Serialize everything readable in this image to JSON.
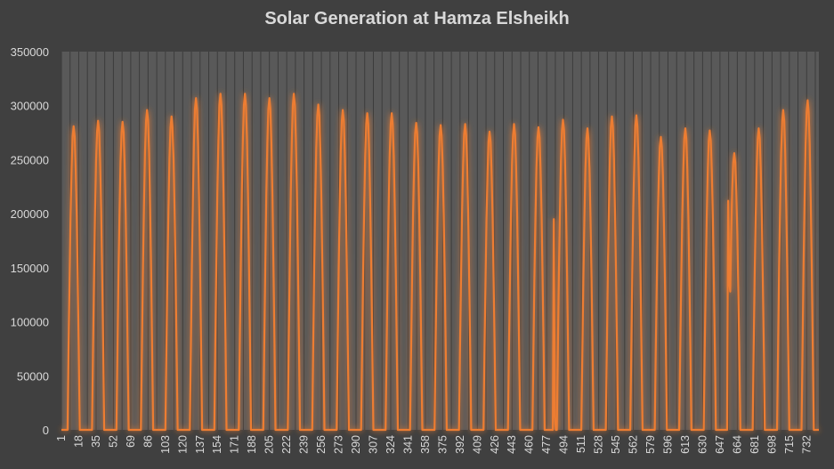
{
  "chart_data": {
    "type": "line",
    "title": "Solar Generation at Hamza Elsheikh",
    "xlabel": "",
    "ylabel": "",
    "xlim": [
      1,
      744
    ],
    "ylim": [
      0,
      350000
    ],
    "y_ticks": [
      0,
      50000,
      100000,
      150000,
      200000,
      250000,
      300000,
      350000
    ],
    "x_tick_labels": [
      1,
      18,
      35,
      52,
      69,
      86,
      103,
      120,
      137,
      154,
      171,
      188,
      205,
      222,
      239,
      256,
      273,
      290,
      307,
      324,
      341,
      358,
      375,
      392,
      409,
      426,
      443,
      460,
      477,
      494,
      511,
      528,
      545,
      562,
      579,
      596,
      613,
      630,
      647,
      664,
      681,
      698,
      715,
      732
    ],
    "grid": "vertical",
    "legend": "none",
    "colors": {
      "background": "#404040",
      "plot_area": "#595959",
      "line": "#ed7d31",
      "text": "#d9d9d9"
    },
    "series": [
      {
        "peak_values": [
          281000,
          286000,
          285000,
          296000,
          290000,
          307000,
          311000,
          311000,
          307000,
          311000,
          301000,
          296000,
          293000,
          293000,
          284000,
          282000,
          283000,
          276000,
          283000,
          280000,
          287000,
          279000,
          290000,
          291000,
          271000,
          279000,
          277000,
          256000,
          279000,
          296000,
          305000
        ],
        "anomalies": [
          {
            "x": 484,
            "y": 195000
          },
          {
            "x": 485,
            "y": 12000
          },
          {
            "x": 655,
            "y": 212000
          },
          {
            "x": 656,
            "y": 140000
          }
        ]
      }
    ]
  }
}
